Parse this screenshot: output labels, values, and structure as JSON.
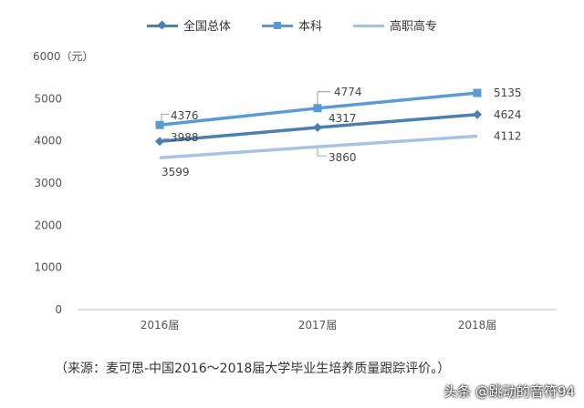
{
  "chart_data": {
    "type": "line",
    "categories": [
      "2016届",
      "2017届",
      "2018届"
    ],
    "ylabel": "6000（元）",
    "ylim": [
      0,
      6000
    ],
    "yticks": [
      "0",
      "1000",
      "2000",
      "3000",
      "4000",
      "5000"
    ],
    "grid": false,
    "legend_position": "top",
    "series": [
      {
        "name": "全国总体",
        "values": [
          3988,
          4317,
          4624
        ],
        "value_labels": [
          "3988",
          "4317",
          "4624"
        ],
        "color": "#4a7fb0",
        "marker": "diamond"
      },
      {
        "name": "本科",
        "values": [
          4376,
          4774,
          5135
        ],
        "value_labels": [
          "4376",
          "4774",
          "5135"
        ],
        "color": "#5b9bd5",
        "marker": "square"
      },
      {
        "name": "高职高专",
        "values": [
          3599,
          3860,
          4112
        ],
        "value_labels": [
          "3599",
          "3860",
          "4112"
        ],
        "color": "#a6c4e2",
        "marker": "none"
      }
    ]
  },
  "caption": "（来源：麦可思-中国2016～2018届大学毕业生培养质量跟踪评价。）",
  "watermark": "头条 @跳动的音符94"
}
